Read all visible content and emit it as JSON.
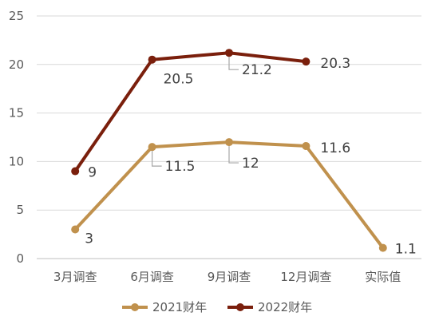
{
  "chart_data": {
    "type": "line",
    "categories": [
      "3月调查",
      "6月调查",
      "9月调查",
      "12月调查",
      "实际值"
    ],
    "ylim": [
      0,
      25
    ],
    "yticks": [
      0,
      5,
      10,
      15,
      20,
      25
    ],
    "grid": true,
    "legend_position": "bottom",
    "series": [
      {
        "name": "2021财年",
        "color": "#C0914D",
        "values": [
          3,
          11.5,
          12,
          11.6,
          1.1
        ],
        "labels": [
          "3",
          "11.5",
          "12",
          "11.6",
          "1.1"
        ]
      },
      {
        "name": "2022财年",
        "color": "#7A1F0C",
        "values": [
          9,
          20.5,
          21.2,
          20.3,
          null
        ],
        "labels": [
          "9",
          "20.5",
          "21.2",
          "20.3",
          ""
        ]
      }
    ]
  }
}
